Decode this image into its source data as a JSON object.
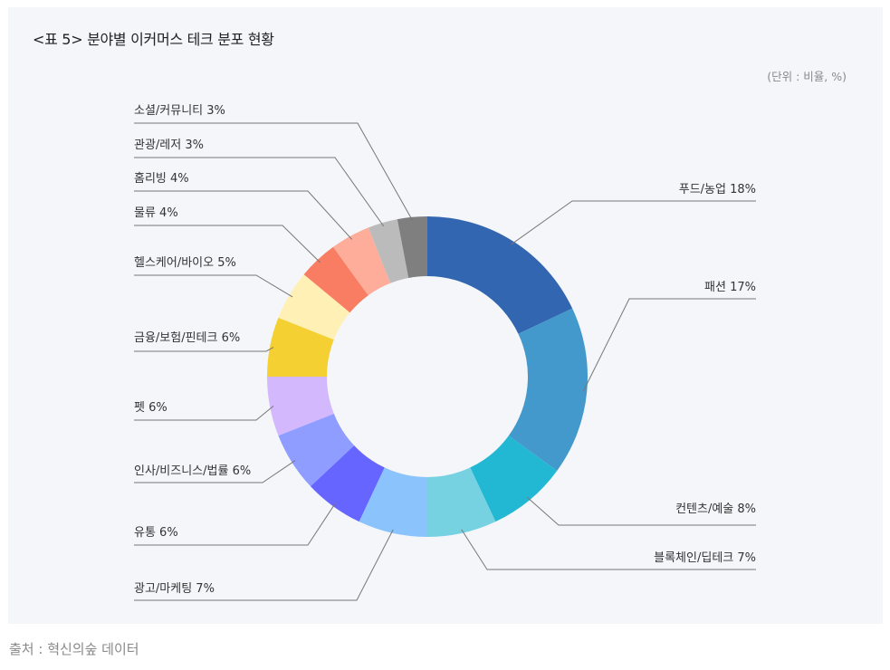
{
  "title": "<표 5> 분야별 이커머스 테크 분포 현황",
  "unit": "(단위 : 비율, %)",
  "source": "출처 : 혁신의숲 데이터",
  "chart_data": {
    "type": "pie",
    "donut": true,
    "title": "<표 5> 분야별 이커머스 테크 분포 현황",
    "unit_note": "(단위 : 비율, %)",
    "categories": [
      "푸드/농업",
      "패션",
      "컨텐츠/예술",
      "블록체인/딥테크",
      "광고/마케팅",
      "유통",
      "인사/비즈니스/법률",
      "펫",
      "금융/보험/핀테크",
      "헬스케어/바이오",
      "물류",
      "홈리빙",
      "관광/레저",
      "소셜/커뮤니티"
    ],
    "values": [
      18,
      17,
      8,
      7,
      7,
      6,
      6,
      6,
      6,
      5,
      4,
      4,
      3,
      3
    ],
    "colors": [
      "#3366b0",
      "#4399cc",
      "#22b8d3",
      "#76d1e1",
      "#8bc4fd",
      "#6665ff",
      "#8e9dff",
      "#d3b8fe",
      "#f5d033",
      "#fff0b5",
      "#f87d62",
      "#fdad99",
      "#bbbbbb",
      "#7f7f7f"
    ],
    "labels": [
      "푸드/농업 18%",
      "패션 17%",
      "컨텐츠/예술 8%",
      "블록체인/딥테크 7%",
      "광고/마케팅 7%",
      "유통 6%",
      "인사/비즈니스/법률 6%",
      "펫 6%",
      "금융/보험/핀테크 6%",
      "헬스케어/바이오 5%",
      "물류 4%",
      "홈리빙 4%",
      "관광/레저 3%",
      "소셜/커뮤니티 3%"
    ],
    "start_angle": "12 o'clock, clockwise",
    "legend": "leader-line labels around chart"
  }
}
